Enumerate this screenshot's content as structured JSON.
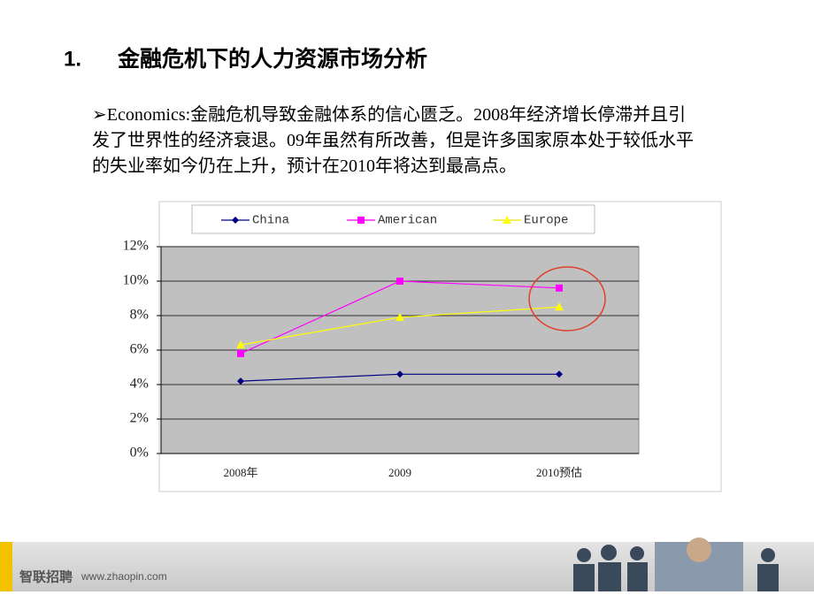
{
  "heading": {
    "number": "1.",
    "title": "金融危机下的人力资源市场分析"
  },
  "paragraph": "➢Economics:金融危机导致金融体系的信心匮乏。2008年经济增长停滞并且引发了世界性的经济衰退。09年虽然有所改善，但是许多国家原本处于较低水平的失业率如今仍在上升，预计在2010年将达到最高点。",
  "footer": {
    "brand": "智联招聘",
    "url": "www.zhaopin.com"
  },
  "chart_data": {
    "type": "line",
    "categories": [
      "2008年",
      "2009",
      "2010预估"
    ],
    "series": [
      {
        "name": "China",
        "color": "#000080",
        "marker": "diamond",
        "values": [
          4.2,
          4.6,
          4.6
        ]
      },
      {
        "name": "American",
        "color": "#ff00ff",
        "marker": "square",
        "values": [
          5.8,
          10.0,
          9.6
        ]
      },
      {
        "name": "Europe",
        "color": "#ffff00",
        "marker": "triangle",
        "values": [
          6.3,
          7.9,
          8.5
        ]
      }
    ],
    "ylim": [
      0,
      12
    ],
    "yticks": [
      {
        "value": 0,
        "label": "0%"
      },
      {
        "value": 2,
        "label": "2%"
      },
      {
        "value": 4,
        "label": "4%"
      },
      {
        "value": 6,
        "label": "6%"
      },
      {
        "value": 8,
        "label": "8%"
      },
      {
        "value": 10,
        "label": "10%"
      },
      {
        "value": 12,
        "label": "12%"
      }
    ],
    "grid": true,
    "legend": "top"
  }
}
